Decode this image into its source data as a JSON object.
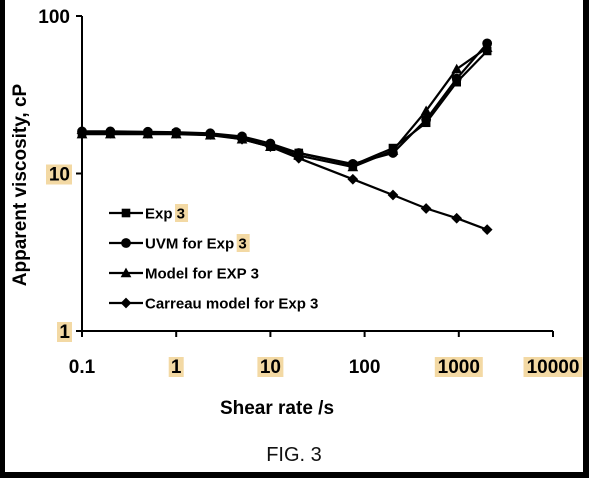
{
  "caption": "FIG. 3",
  "colors": {
    "highlight": "#f3d9a4",
    "ink": "#000000"
  },
  "chart_data": {
    "type": "line",
    "xscale": "log",
    "yscale": "log",
    "xlim": [
      0.1,
      10000
    ],
    "ylim": [
      1,
      100
    ],
    "xlabel": "Shear rate /s",
    "ylabel": "Apparent viscosity, cP",
    "xticks": [
      "0.1",
      "1",
      "10",
      "100",
      "1000",
      "10000"
    ],
    "yticks": [
      "1",
      "10",
      "100"
    ],
    "grid": false,
    "legend_position": "bottom-left",
    "series": [
      {
        "name": "Exp 3",
        "marker": "square",
        "x": [
          0.1,
          0.2,
          0.5,
          1,
          2.3,
          5,
          10,
          20,
          75,
          200,
          450,
          950,
          2000
        ],
        "y": [
          18,
          18,
          18,
          18,
          17.5,
          16.8,
          15,
          13.5,
          11.3,
          14.5,
          21,
          38,
          60
        ]
      },
      {
        "name": "UVM for Exp 3",
        "marker": "circle",
        "x": [
          0.1,
          0.2,
          0.5,
          1,
          2.3,
          5,
          10,
          20,
          75,
          200,
          450,
          950,
          2000
        ],
        "y": [
          18.5,
          18.5,
          18.4,
          18.3,
          18,
          17.2,
          15.5,
          13.5,
          11.5,
          13.5,
          22,
          40,
          67
        ]
      },
      {
        "name": "Model for EXP 3",
        "marker": "triangle",
        "x": [
          0.1,
          0.2,
          0.5,
          1,
          2.3,
          5,
          10,
          20,
          75,
          200,
          450,
          950,
          2000
        ],
        "y": [
          17.8,
          17.8,
          17.8,
          17.8,
          17.5,
          16.5,
          14.8,
          13,
          11,
          14,
          25,
          46,
          63
        ]
      },
      {
        "name": "Carreau model for Exp 3",
        "marker": "diamond",
        "x": [
          0.1,
          0.2,
          0.5,
          1,
          2.3,
          5,
          10,
          20,
          75,
          200,
          450,
          950,
          2000
        ],
        "y": [
          18,
          18,
          18,
          18,
          17.7,
          16.5,
          14.8,
          12.5,
          9.2,
          7.3,
          6,
          5.2,
          4.4
        ]
      }
    ],
    "highlighted_labels": [
      "1",
      "10",
      "1000",
      "10000",
      "3"
    ]
  }
}
